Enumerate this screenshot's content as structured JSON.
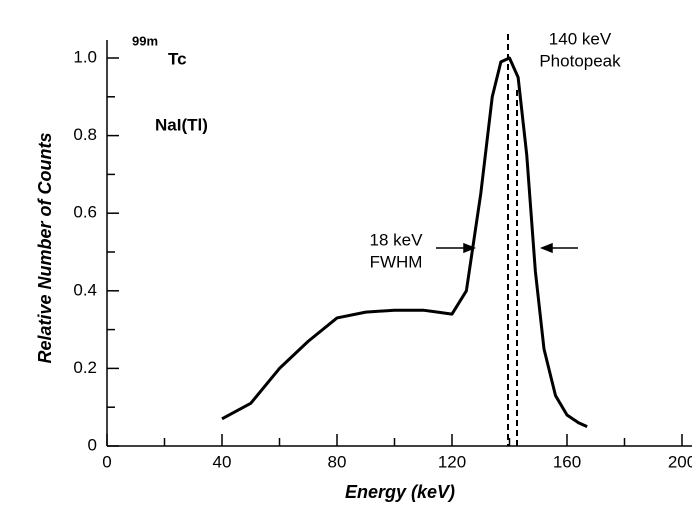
{
  "chart_data": {
    "type": "line",
    "x_label": "Energy (keV)",
    "y_label": "Relative Number of Counts",
    "annotations": {
      "isotope_mass": "99m",
      "isotope": "Tc",
      "detector": "NaI(Tl)",
      "peak_energy": "140 keV",
      "peak_name": "Photopeak",
      "fwhm_value": "18 keV",
      "fwhm_name": "FWHM"
    },
    "series": [
      {
        "color": "#000000",
        "x": [
          40,
          50,
          60,
          70,
          80,
          90,
          100,
          110,
          115,
          120,
          125,
          130,
          134,
          137,
          140,
          143,
          146,
          149,
          152,
          156,
          160,
          164,
          167
        ],
        "values": [
          0.07,
          0.11,
          0.2,
          0.27,
          0.33,
          0.345,
          0.35,
          0.35,
          0.345,
          0.34,
          0.4,
          0.65,
          0.9,
          0.99,
          1.0,
          0.95,
          0.75,
          0.45,
          0.25,
          0.13,
          0.08,
          0.06,
          0.05
        ]
      }
    ],
    "xlim": [
      0,
      200
    ],
    "xticks": [
      0,
      40,
      80,
      120,
      160,
      200
    ],
    "xminorticks": [
      20,
      60,
      100,
      140,
      180
    ],
    "ylim": [
      0,
      1
    ],
    "yticks": [
      0,
      0.2,
      0.4,
      0.6,
      0.8,
      {
        "value": 1,
        "label": "1.0"
      }
    ],
    "yminorticks": [
      0.1,
      0.3,
      0.5,
      0.7,
      0.9
    ]
  }
}
